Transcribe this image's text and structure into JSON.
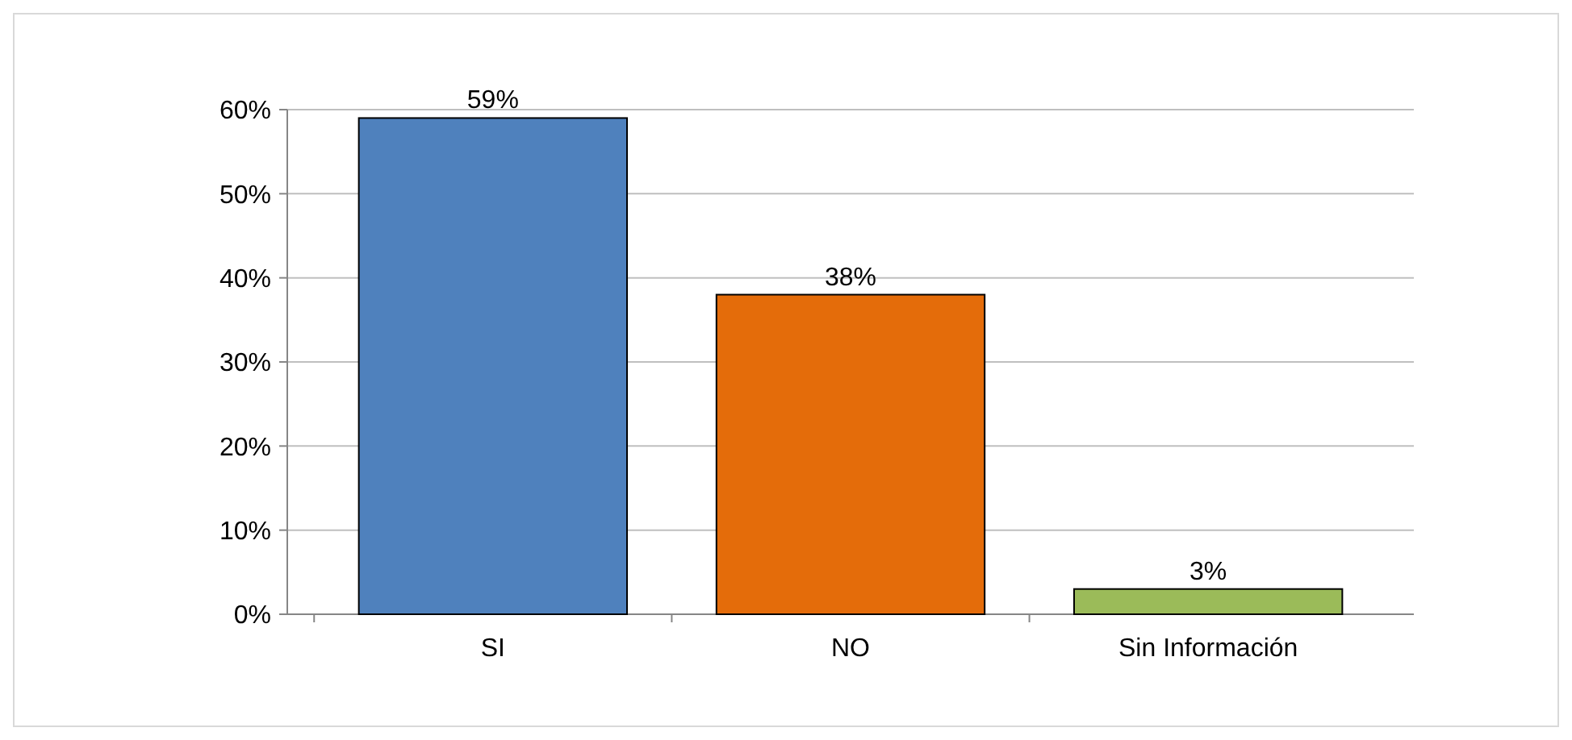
{
  "chart_data": {
    "type": "bar",
    "categories": [
      "SI",
      "NO",
      "Sin Información"
    ],
    "values": [
      59,
      38,
      3
    ],
    "colors": [
      "#4f81bd",
      "#e46c0a",
      "#9bbb59"
    ],
    "value_labels": [
      "59%",
      "38%",
      "3%"
    ],
    "ylim": [
      0,
      60
    ],
    "yticks": [
      {
        "value": 0,
        "label": "0%"
      },
      {
        "value": 10,
        "label": "10%"
      },
      {
        "value": 20,
        "label": "20%"
      },
      {
        "value": 30,
        "label": "30%"
      },
      {
        "value": 40,
        "label": "40%"
      },
      {
        "value": 50,
        "label": "50%"
      },
      {
        "value": 60,
        "label": "60%"
      }
    ],
    "grid": "y"
  }
}
